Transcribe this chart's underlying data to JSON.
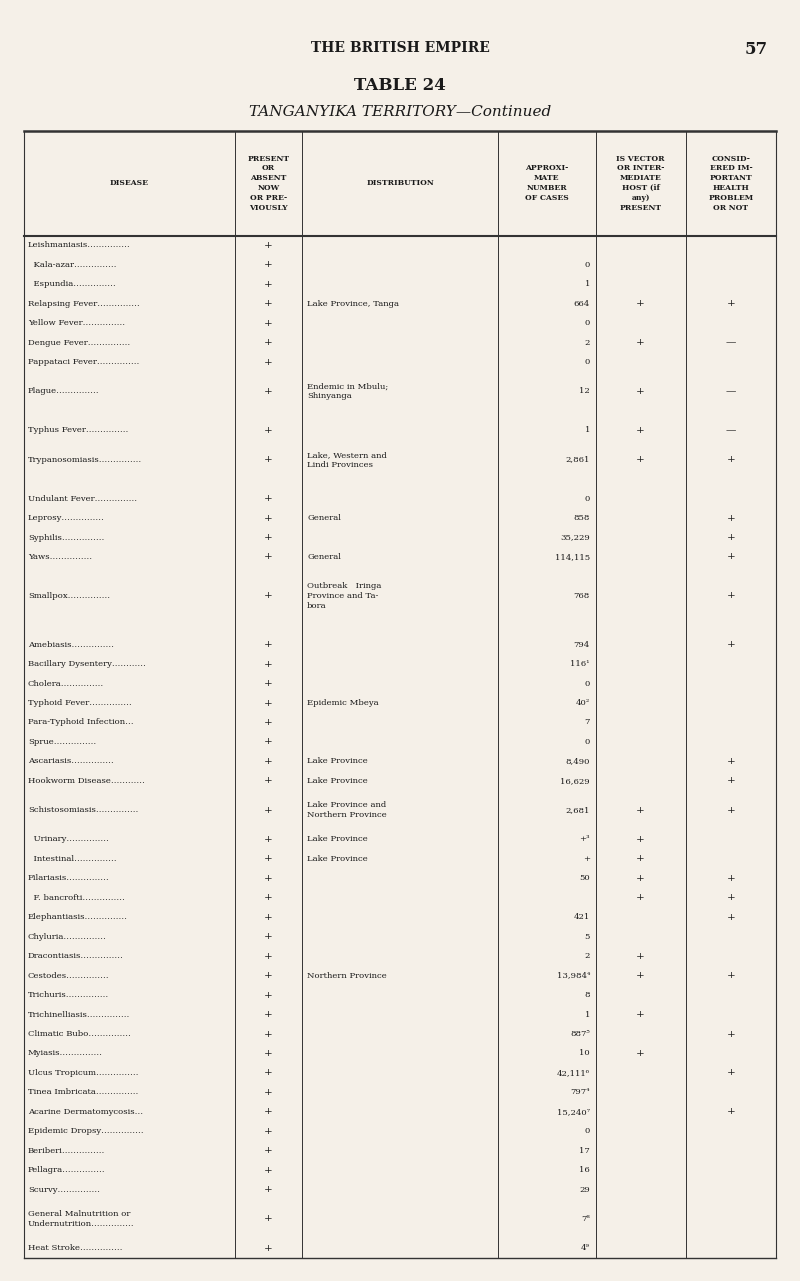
{
  "page_header": "THE BRITISH EMPIRE",
  "page_number": "57",
  "table_title1": "TABLE 24",
  "table_title2": "TANGANYIKA TERRITORY—Continued",
  "col_headers": [
    "DISEASE",
    "PRESENT\nOR\nABSENT\nNOW\nOR PRE-\nVIOUSLY",
    "DISTRIBUTION",
    "APPROXI-\nMATE\nNUMBER\nOF CASES",
    "IS VECTOR\nOR INTER-\nMEDIATE\nHOST (if\nany)\nPRESENT",
    "CONSID-\nERED IM-\nPORTANT\nHEALTH\nPROBLEM\nOR NOT"
  ],
  "rows": [
    [
      "Leishmaniasis……………",
      "+",
      "",
      "",
      "",
      ""
    ],
    [
      "  Kala-azar……………",
      "+",
      "",
      "0",
      "",
      ""
    ],
    [
      "  Espundia……………",
      "+",
      "",
      "1",
      "",
      ""
    ],
    [
      "Relapsing Fever……………",
      "+",
      "Lake Province, Tanga",
      "664",
      "+",
      "+"
    ],
    [
      "Yellow Fever……………",
      "+",
      "",
      "0",
      "",
      ""
    ],
    [
      "Dengue Fever……………",
      "+",
      "",
      "2",
      "+",
      "—"
    ],
    [
      "Pappataci Fever……………",
      "+",
      "",
      "0",
      "",
      ""
    ],
    [
      "Plague……………",
      "+",
      "Endemic in Mbulu;\nShinyanga",
      "12",
      "+",
      "—"
    ],
    [
      "",
      "",
      "",
      "",
      "",
      ""
    ],
    [
      "Typhus Fever……………",
      "+",
      "",
      "1",
      "+",
      "—"
    ],
    [
      "Trypanosomiasis……………",
      "+",
      "Lake, Western and\nLindi Provinces",
      "2,861",
      "+",
      "+"
    ],
    [
      "",
      "",
      "",
      "",
      "",
      ""
    ],
    [
      "Undulant Fever……………",
      "+",
      "",
      "0",
      "",
      ""
    ],
    [
      "Leprosy……………",
      "+",
      "General",
      "858",
      "",
      "+"
    ],
    [
      "Syphilis……………",
      "+",
      "",
      "35,229",
      "",
      "+"
    ],
    [
      "Yaws……………",
      "+",
      "General",
      "114,115",
      "",
      "+"
    ],
    [
      "Smallpox……………",
      "+",
      "Outbreak   Iringa\nProvince and Ta-\nbora",
      "768",
      "",
      "+"
    ],
    [
      "",
      "",
      "",
      "",
      "",
      ""
    ],
    [
      "Amebiasis……………",
      "+",
      "",
      "794",
      "",
      "+"
    ],
    [
      "Bacillary Dysentery…………",
      "+",
      "",
      "116¹",
      "",
      ""
    ],
    [
      "Cholera……………",
      "+",
      "",
      "0",
      "",
      ""
    ],
    [
      "Typhoid Fever……………",
      "+",
      "Epidemic Mbeya",
      "40²",
      "",
      ""
    ],
    [
      "Para-Typhoid Infection…",
      "+",
      "",
      "7",
      "",
      ""
    ],
    [
      "Sprue……………",
      "+",
      "",
      "0",
      "",
      ""
    ],
    [
      "Ascariasis……………",
      "+",
      "Lake Province",
      "8,490",
      "",
      "+"
    ],
    [
      "Hookworm Disease…………",
      "+",
      "Lake Province",
      "16,629",
      "",
      "+"
    ],
    [
      "Schistosomiasis……………",
      "+",
      "Lake Province and\nNorthern Province",
      "2,681",
      "+",
      "+"
    ],
    [
      "  Urinary……………",
      "+",
      "Lake Province",
      "+³",
      "+",
      ""
    ],
    [
      "  Intestinal……………",
      "+",
      "Lake Province",
      "+",
      "+",
      ""
    ],
    [
      "Filariasis……………",
      "+",
      "",
      "50",
      "+",
      "+"
    ],
    [
      "  F. bancrofti……………",
      "+",
      "",
      "",
      "+",
      "+"
    ],
    [
      "Elephantiasis……………",
      "+",
      "",
      "421",
      "",
      "+"
    ],
    [
      "Chyluria……………",
      "+",
      "",
      "5",
      "",
      ""
    ],
    [
      "Dracontiasis……………",
      "+",
      "",
      "2",
      "+",
      ""
    ],
    [
      "Cestodes……………",
      "+",
      "Northern Province",
      "13,984⁴",
      "+",
      "+"
    ],
    [
      "Trichuris……………",
      "+",
      "",
      "8",
      "",
      ""
    ],
    [
      "Trichinelliasis……………",
      "+",
      "",
      "1",
      "+",
      ""
    ],
    [
      "Climatic Bubo……………",
      "+",
      "",
      "887⁵",
      "",
      "+"
    ],
    [
      "Myiasis……………",
      "+",
      "",
      "10",
      "+",
      ""
    ],
    [
      "Ulcus Tropicum……………",
      "+",
      "",
      "42,111⁶",
      "",
      "+"
    ],
    [
      "Tinea Imbricata……………",
      "+",
      "",
      "797⁴",
      "",
      ""
    ],
    [
      "Acarine Dermatomycosis…",
      "+",
      "",
      "15,240⁷",
      "",
      "+"
    ],
    [
      "Epidemic Dropsy……………",
      "+",
      "",
      "0",
      "",
      ""
    ],
    [
      "Beriberi……………",
      "+",
      "",
      "17",
      "",
      ""
    ],
    [
      "Pellagra……………",
      "+",
      "",
      "16",
      "",
      ""
    ],
    [
      "Scurvy……………",
      "+",
      "",
      "29",
      "",
      ""
    ],
    [
      "General Malnutrition or\nUndernutrition……………",
      "+",
      "",
      "7⁸",
      "",
      ""
    ],
    [
      "Heat Stroke……………",
      "+",
      "",
      "4⁹",
      "",
      ""
    ]
  ],
  "bg_color": "#f5f0e8",
  "text_color": "#1a1a1a",
  "line_color": "#333333"
}
